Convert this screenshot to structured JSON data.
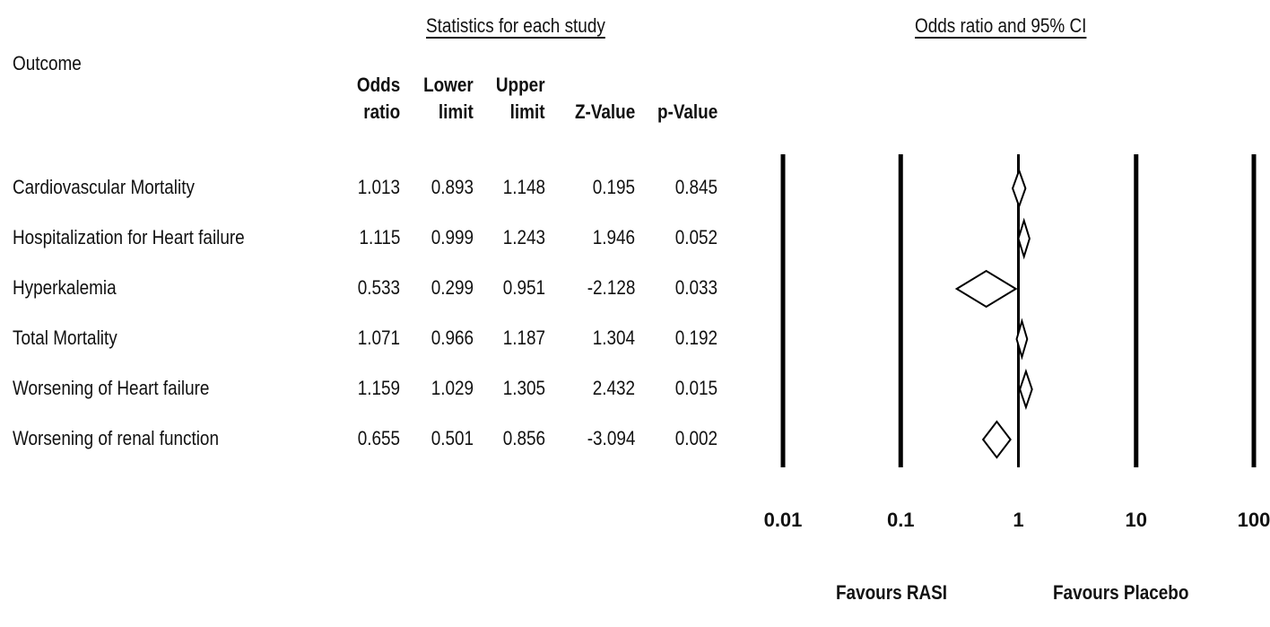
{
  "header": {
    "outcome_label": "Outcome",
    "stats_title": "Statistics for each study",
    "plot_title": "Odds ratio and 95% CI"
  },
  "columns": [
    {
      "key": "or",
      "line1": "Odds",
      "line2": "ratio"
    },
    {
      "key": "lower",
      "line1": "Lower",
      "line2": "limit"
    },
    {
      "key": "upper",
      "line1": "Upper",
      "line2": "limit"
    },
    {
      "key": "z",
      "line1": "",
      "line2": "Z-Value"
    },
    {
      "key": "p",
      "line1": "",
      "line2": "p-Value"
    }
  ],
  "rows": [
    {
      "label": "Cardiovascular Mortality",
      "or": "1.013",
      "lower": "0.893",
      "upper": "1.148",
      "z": "0.195",
      "p": "0.845"
    },
    {
      "label": "Hospitalization for Heart failure",
      "or": "1.115",
      "lower": "0.999",
      "upper": "1.243",
      "z": "1.946",
      "p": "0.052"
    },
    {
      "label": "Hyperkalemia",
      "or": "0.533",
      "lower": "0.299",
      "upper": "0.951",
      "z": "-2.128",
      "p": "0.033"
    },
    {
      "label": "Total Mortality",
      "or": "1.071",
      "lower": "0.966",
      "upper": "1.187",
      "z": "1.304",
      "p": "0.192"
    },
    {
      "label": "Worsening of Heart failure",
      "or": "1.159",
      "lower": "1.029",
      "upper": "1.305",
      "z": "2.432",
      "p": "0.015"
    },
    {
      "label": "Worsening of renal function",
      "or": "0.655",
      "lower": "0.501",
      "upper": "0.856",
      "z": "-3.094",
      "p": "0.002"
    }
  ],
  "favours": {
    "left": "Favours RASI",
    "right": "Favours Placebo"
  },
  "chart_data": {
    "type": "forest",
    "title": "Odds ratio and 95% CI",
    "xscale": "log",
    "xlim": [
      0.01,
      100
    ],
    "xticks": [
      "0.01",
      "0.1",
      "1",
      "10",
      "100"
    ],
    "reference_line": 1,
    "marker": "diamond",
    "series": [
      {
        "label": "Cardiovascular Mortality",
        "or": 1.013,
        "lower": 0.893,
        "upper": 1.148
      },
      {
        "label": "Hospitalization for Heart failure",
        "or": 1.115,
        "lower": 0.999,
        "upper": 1.243
      },
      {
        "label": "Hyperkalemia",
        "or": 0.533,
        "lower": 0.299,
        "upper": 0.951
      },
      {
        "label": "Total Mortality",
        "or": 1.071,
        "lower": 0.966,
        "upper": 1.187
      },
      {
        "label": "Worsening of Heart failure",
        "or": 1.159,
        "lower": 1.029,
        "upper": 1.305
      },
      {
        "label": "Worsening of renal function",
        "or": 0.655,
        "lower": 0.501,
        "upper": 0.856
      }
    ]
  }
}
